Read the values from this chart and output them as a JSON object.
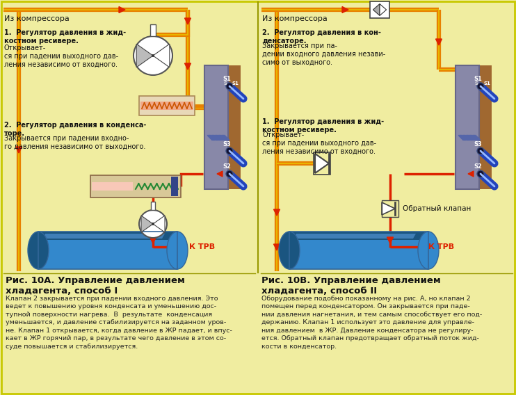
{
  "bg_color": "#f0eda0",
  "border_color": "#c8c800",
  "orange": "#e88000",
  "yellow_line": "#e8c000",
  "red": "#dd2200",
  "blue_pipe": "#2244bb",
  "blue_tank": "#3388cc",
  "blue_tank_dark": "#1a5580",
  "blue_tank_light": "#66aaee",
  "gray_he": "#8888a8",
  "gray_he_dark": "#666688",
  "brown_he": "#a06830",
  "text_dark": "#111111",
  "text_red": "#cc2200",
  "left_title": "Рис. 10А. Управление давлением\nхладагента, способ I",
  "right_title": "Рис. 10В. Управление давлением\nхладагента, способ II",
  "left_body": "Клапан 2 закрывается при падении входного давления. Это\nведет к повышению уровня конденсата и уменьшению дос-\nтупной поверхности нагрева.  В  результате  конденсация\nуменьшается, и давление стабилизируется на заданном уров-\nне. Клапан 1 открывается, когда давление в ЖР падает, и впус-\nкает в ЖР горячий пар, в результате чего давление в этом со-\nсуде повышается и стабилизируется.",
  "right_body": "Оборудование подобно показанному на рис. А, но клапан 2\nпомещен перед конденсатором. Он закрывается при паде-\nнии давления нагнетания, и тем самым способствует его под-\nдержанию. Клапан 1 использует это давление для управле-\nния давлением  в ЖР. Давление конденсатора не регулиру-\nется. Обратный клапан предотвращает обратный поток жид-\nкости в конденсатор.",
  "ann1_left_bold": "1.  Регулятор давления в жид-\nкостном ресивере.",
  "ann1_left_normal": " Открывает-\nся при падении выходного дав-\nления независимо от входного.",
  "ann2_left_bold": "2.  Регулятор давления в конденса-\nторе.",
  "ann2_left_normal": " Закрывается при падении входно-\nго давления независимо от выходного.",
  "ann2_right_bold": "2.  Регулятор давления в кон-\nденсаторе.",
  "ann2_right_normal": " Закрывается при па-\nдении входного давления незави-\nсимо от выходного.",
  "ann1_right_bold": "1.  Регулятор давления в жид-\nкостном ресивере.",
  "ann1_right_normal": " Открывает-\nся при падении выходного дав-\nления независимо от входного.",
  "iz_komp": "Из компрессора",
  "k_trv": "К ТРВ",
  "obratny": "Обратный клапан"
}
